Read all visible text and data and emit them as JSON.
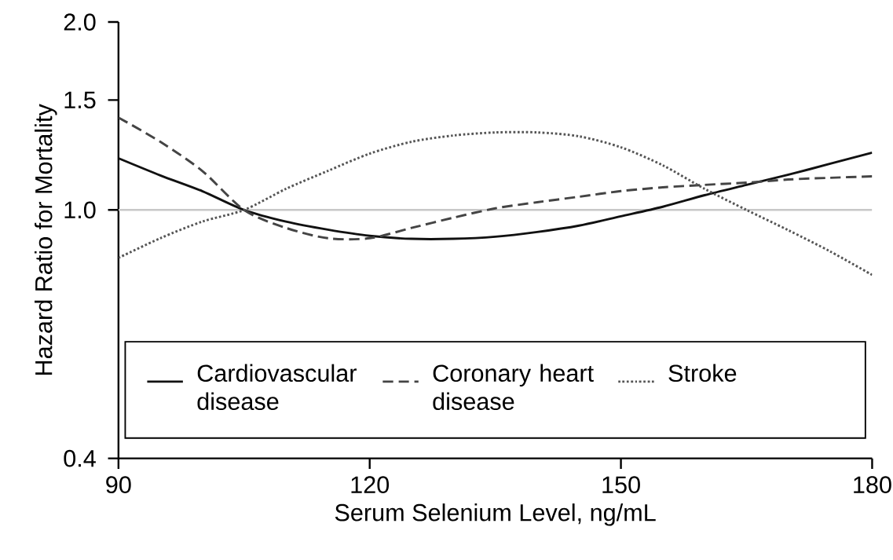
{
  "chart_data": {
    "type": "line",
    "xlabel": "Serum Selenium Level, ng/mL",
    "ylabel": "Hazard Ratio for Mortality",
    "x": [
      90,
      95,
      100,
      105,
      110,
      115,
      120,
      125,
      130,
      135,
      140,
      145,
      150,
      155,
      160,
      165,
      170,
      175,
      180
    ],
    "series": [
      {
        "name": "Cardiovascular disease",
        "color": "#111111",
        "line_style": "solid",
        "values": [
          1.21,
          1.136,
          1.072,
          1.0,
          0.958,
          0.93,
          0.909,
          0.899,
          0.899,
          0.906,
          0.922,
          0.944,
          0.977,
          1.012,
          1.056,
          1.097,
          1.139,
          1.186,
          1.235
        ]
      },
      {
        "name": "Coronary heart disease",
        "color": "#444444",
        "line_style": "dashed",
        "values": [
          1.406,
          1.286,
          1.155,
          1.0,
          0.936,
          0.901,
          0.901,
          0.936,
          0.972,
          1.006,
          1.029,
          1.05,
          1.072,
          1.087,
          1.097,
          1.106,
          1.119,
          1.126,
          1.132
        ]
      },
      {
        "name": "Stroke",
        "color": "#555555",
        "line_style": "dotted",
        "values": [
          0.838,
          0.901,
          0.958,
          1.0,
          1.081,
          1.155,
          1.231,
          1.286,
          1.316,
          1.331,
          1.331,
          1.312,
          1.26,
          1.179,
          1.081,
          1.0,
          0.928,
          0.858,
          0.787
        ]
      }
    ],
    "xlim": [
      90,
      180
    ],
    "xticks": [
      90,
      120,
      150,
      180
    ],
    "ylim": [
      0.4,
      2.0
    ],
    "log": "y",
    "yticks": [
      {
        "value": 0.4,
        "label": "0.4"
      },
      {
        "value": 1.0,
        "label": "1.0"
      },
      {
        "value": 1.5,
        "label": "1.5"
      },
      {
        "value": 2.0,
        "label": "2.0"
      }
    ],
    "ref_lines": [
      {
        "axis": "y",
        "value": 1.0,
        "color": "#c8c8c8"
      }
    ],
    "legend": "bottom",
    "grid": false,
    "marker": "none"
  }
}
